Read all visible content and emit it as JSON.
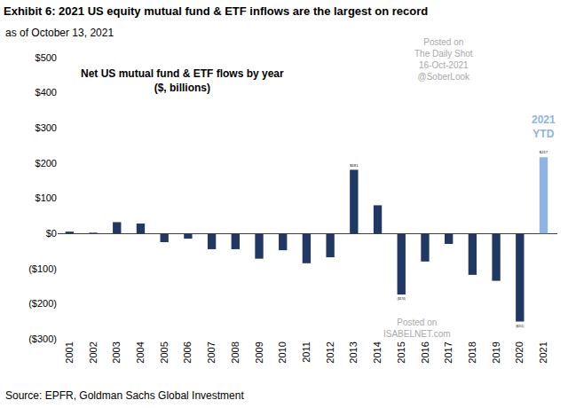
{
  "chart_data": {
    "type": "bar",
    "title": "Exhibit 6: 2021 US equity mutual fund & ETF inflows are the largest on record",
    "subtitle": "as of October 13, 2021",
    "inner_title": "Net US mutual fund & ETF flows by year",
    "inner_subtitle": "($, billions)",
    "source": "Source: EPFR, Goldman Sachs Global Investment",
    "watermarks": [
      {
        "lines": [
          "Posted on",
          "The Daily Shot",
          "16-Oct-2021",
          "@SoberLook"
        ]
      },
      {
        "lines": [
          "Posted on",
          "ISABELNET.com"
        ]
      }
    ],
    "annotations": [
      {
        "text": "2021 YTD",
        "category": "2021"
      }
    ],
    "categories": [
      "2001",
      "2002",
      "2003",
      "2004",
      "2005",
      "2006",
      "2007",
      "2008",
      "2009",
      "2010",
      "2011",
      "2012",
      "2013",
      "2014",
      "2015",
      "2016",
      "2017",
      "2018",
      "2019",
      "2020",
      "2021"
    ],
    "values": [
      5,
      2,
      32,
      28,
      -25,
      -15,
      -45,
      -45,
      -72,
      -48,
      -85,
      -68,
      181,
      80,
      -174,
      -80,
      -30,
      -118,
      -135,
      -251,
      217
    ],
    "value_labels": [
      null,
      null,
      null,
      null,
      null,
      null,
      null,
      null,
      null,
      null,
      null,
      null,
      "$181",
      null,
      "($174)",
      null,
      null,
      null,
      null,
      "($251)",
      "$217"
    ],
    "data_labels": true,
    "colors": [
      "#1f3864",
      "#1f3864",
      "#1f3864",
      "#1f3864",
      "#1f3864",
      "#1f3864",
      "#1f3864",
      "#1f3864",
      "#1f3864",
      "#1f3864",
      "#1f3864",
      "#1f3864",
      "#1f3864",
      "#1f3864",
      "#1f3864",
      "#1f3864",
      "#1f3864",
      "#1f3864",
      "#1f3864",
      "#1f3864",
      "#8db4e2"
    ],
    "ylim": [
      -300,
      500
    ],
    "yticks": [
      {
        "value": -300,
        "label": "($300)"
      },
      {
        "value": -200,
        "label": "($200)"
      },
      {
        "value": -100,
        "label": "($100)"
      },
      {
        "value": 0,
        "label": "$0"
      },
      {
        "value": 100,
        "label": "$100"
      },
      {
        "value": 200,
        "label": "$200"
      },
      {
        "value": 300,
        "label": "$300"
      },
      {
        "value": 400,
        "label": "$400"
      },
      {
        "value": 500,
        "label": "$500"
      }
    ],
    "grid": false
  }
}
